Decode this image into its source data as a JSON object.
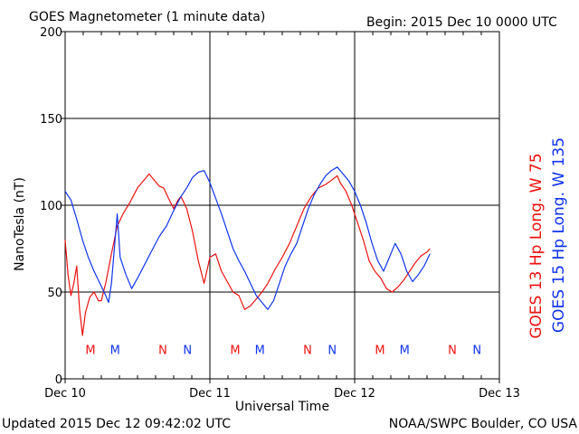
{
  "chart_data": {
    "type": "line",
    "title": "GOES Magnetometer (1 minute data)",
    "begin_label": "Begin:  2015 Dec 10 0000 UTC",
    "xlabel": "Universal Time",
    "ylabel": "NanoTesla (nT)",
    "ylim": [
      0,
      200
    ],
    "yticks": [
      "0",
      "50",
      "100",
      "150",
      "200"
    ],
    "xlim": [
      0,
      3
    ],
    "x_unit": "days since 2015 Dec 10 0000 UTC",
    "xtick_labels": [
      "Dec 10",
      "Dec 11",
      "Dec 12",
      "Dec 13"
    ],
    "grid": true,
    "series": [
      {
        "name": "GOES 13 Hp  Long. W 75",
        "color": "#ee1111",
        "points": [
          [
            0.0,
            80
          ],
          [
            0.02,
            60
          ],
          [
            0.04,
            48
          ],
          [
            0.06,
            55
          ],
          [
            0.08,
            65
          ],
          [
            0.1,
            40
          ],
          [
            0.12,
            25
          ],
          [
            0.14,
            38
          ],
          [
            0.17,
            47
          ],
          [
            0.2,
            50
          ],
          [
            0.23,
            45
          ],
          [
            0.25,
            45
          ],
          [
            0.28,
            55
          ],
          [
            0.32,
            72
          ],
          [
            0.36,
            88
          ],
          [
            0.4,
            95
          ],
          [
            0.45,
            102
          ],
          [
            0.5,
            110
          ],
          [
            0.55,
            115
          ],
          [
            0.58,
            118
          ],
          [
            0.62,
            114
          ],
          [
            0.65,
            111
          ],
          [
            0.68,
            110
          ],
          [
            0.72,
            103
          ],
          [
            0.75,
            98
          ],
          [
            0.78,
            103
          ],
          [
            0.8,
            105
          ],
          [
            0.84,
            98
          ],
          [
            0.88,
            85
          ],
          [
            0.92,
            68
          ],
          [
            0.96,
            55
          ],
          [
            1.0,
            70
          ],
          [
            1.04,
            72
          ],
          [
            1.08,
            62
          ],
          [
            1.12,
            56
          ],
          [
            1.16,
            50
          ],
          [
            1.2,
            48
          ],
          [
            1.24,
            40
          ],
          [
            1.28,
            42
          ],
          [
            1.32,
            46
          ],
          [
            1.36,
            50
          ],
          [
            1.4,
            55
          ],
          [
            1.45,
            63
          ],
          [
            1.5,
            70
          ],
          [
            1.55,
            78
          ],
          [
            1.6,
            88
          ],
          [
            1.65,
            98
          ],
          [
            1.7,
            105
          ],
          [
            1.75,
            110
          ],
          [
            1.8,
            112
          ],
          [
            1.85,
            115
          ],
          [
            1.88,
            117
          ],
          [
            1.9,
            113
          ],
          [
            1.94,
            108
          ],
          [
            1.98,
            100
          ],
          [
            2.02,
            90
          ],
          [
            2.06,
            80
          ],
          [
            2.1,
            68
          ],
          [
            2.14,
            62
          ],
          [
            2.18,
            58
          ],
          [
            2.22,
            52
          ],
          [
            2.26,
            50
          ],
          [
            2.3,
            53
          ],
          [
            2.34,
            57
          ],
          [
            2.38,
            62
          ],
          [
            2.42,
            67
          ],
          [
            2.46,
            71
          ],
          [
            2.5,
            73
          ],
          [
            2.52,
            75
          ]
        ],
        "markers": [
          {
            "label": "M",
            "x": 0.175
          },
          {
            "label": "N",
            "x": 0.675
          },
          {
            "label": "M",
            "x": 1.175
          },
          {
            "label": "N",
            "x": 1.675
          },
          {
            "label": "M",
            "x": 2.175
          },
          {
            "label": "N",
            "x": 2.675
          }
        ]
      },
      {
        "name": "GOES 15 Hp  Long. W 135",
        "color": "#1133ee",
        "points": [
          [
            0.0,
            108
          ],
          [
            0.04,
            103
          ],
          [
            0.08,
            92
          ],
          [
            0.12,
            80
          ],
          [
            0.16,
            70
          ],
          [
            0.2,
            62
          ],
          [
            0.24,
            55
          ],
          [
            0.28,
            48
          ],
          [
            0.3,
            44
          ],
          [
            0.32,
            55
          ],
          [
            0.34,
            75
          ],
          [
            0.36,
            95
          ],
          [
            0.38,
            70
          ],
          [
            0.42,
            60
          ],
          [
            0.46,
            52
          ],
          [
            0.5,
            58
          ],
          [
            0.55,
            66
          ],
          [
            0.6,
            74
          ],
          [
            0.65,
            82
          ],
          [
            0.7,
            88
          ],
          [
            0.75,
            97
          ],
          [
            0.8,
            105
          ],
          [
            0.84,
            110
          ],
          [
            0.88,
            116
          ],
          [
            0.92,
            119
          ],
          [
            0.96,
            120
          ],
          [
            1.0,
            113
          ],
          [
            1.04,
            104
          ],
          [
            1.08,
            95
          ],
          [
            1.12,
            85
          ],
          [
            1.16,
            75
          ],
          [
            1.2,
            68
          ],
          [
            1.24,
            62
          ],
          [
            1.28,
            55
          ],
          [
            1.32,
            48
          ],
          [
            1.36,
            44
          ],
          [
            1.4,
            40
          ],
          [
            1.44,
            45
          ],
          [
            1.48,
            55
          ],
          [
            1.52,
            65
          ],
          [
            1.56,
            72
          ],
          [
            1.6,
            78
          ],
          [
            1.64,
            88
          ],
          [
            1.68,
            98
          ],
          [
            1.72,
            106
          ],
          [
            1.76,
            112
          ],
          [
            1.8,
            117
          ],
          [
            1.84,
            120
          ],
          [
            1.88,
            122
          ],
          [
            1.92,
            118
          ],
          [
            1.96,
            114
          ],
          [
            2.0,
            108
          ],
          [
            2.04,
            100
          ],
          [
            2.08,
            90
          ],
          [
            2.12,
            78
          ],
          [
            2.16,
            68
          ],
          [
            2.2,
            62
          ],
          [
            2.24,
            70
          ],
          [
            2.28,
            78
          ],
          [
            2.32,
            72
          ],
          [
            2.36,
            62
          ],
          [
            2.4,
            56
          ],
          [
            2.44,
            60
          ],
          [
            2.48,
            65
          ],
          [
            2.52,
            72
          ]
        ],
        "markers": [
          {
            "label": "M",
            "x": 0.345
          },
          {
            "label": "N",
            "x": 0.845
          },
          {
            "label": "M",
            "x": 1.345
          },
          {
            "label": "N",
            "x": 1.845
          },
          {
            "label": "M",
            "x": 2.345
          },
          {
            "label": "N",
            "x": 2.845
          }
        ]
      }
    ],
    "marker_y": 17
  },
  "footer": {
    "updated": "Updated 2015 Dec 12 09:42:02 UTC",
    "credit": "NOAA/SWPC Boulder, CO USA"
  },
  "legend": {
    "goes13": "GOES 13 Hp  Long. W 75",
    "goes15": "GOES 15 Hp  Long. W 135"
  }
}
